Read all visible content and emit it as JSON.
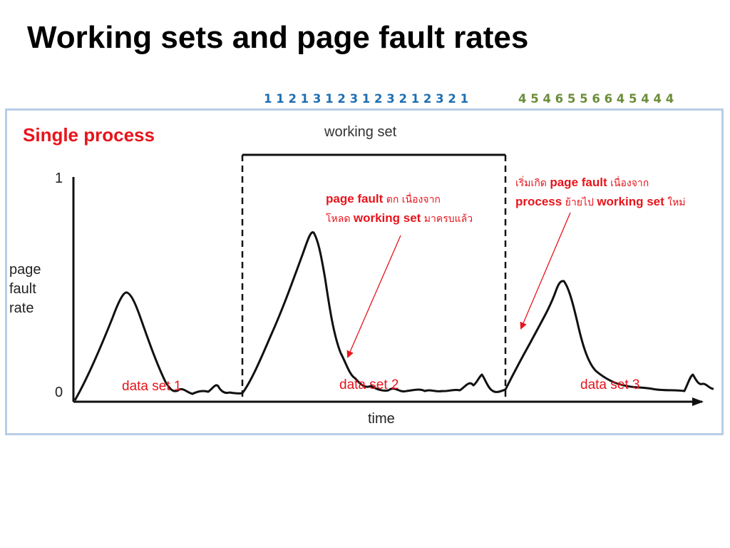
{
  "title": "Working sets and page fault rates",
  "reference_strings": {
    "first": "1 1 2 1 3 1 2 3 1 2 3 2 1 2 3 2 1",
    "second": "4 5 4 6 5 5 6 6 4 5 4 4 4"
  },
  "figure": {
    "process_label": "Single process",
    "working_set_label": "working set",
    "y_axis": {
      "top_tick": "1",
      "bottom_tick": "0",
      "label_line1": "page",
      "label_line2": "fault",
      "label_line3": "rate"
    },
    "x_axis": {
      "label": "time"
    },
    "datasets": [
      "data set 1",
      "data set 2",
      "data set 3"
    ],
    "annotation_1": {
      "line1_bold": "page fault",
      "line1_text": " ตก เนื่องจาก",
      "line2_text": "โหลด ",
      "line2_bold": "working set",
      "line2_text_end": " มาครบแล้ว"
    },
    "annotation_2": {
      "line1_text": "เริ่มเกิด ",
      "line1_bold": "page fault",
      "line1_text_end": " เนื่องจาก",
      "line2_bold": "process",
      "line2_text": " ย้ายไป ",
      "line2_bold2": "working set",
      "line2_text_end": " ใหม่"
    }
  },
  "colors": {
    "title": "#000000",
    "ref_string_1": "#1f6fb2",
    "ref_string_2": "#6c8d3a",
    "annotation": "#e8141b",
    "frame_border": "#b7cee6",
    "curve": "#111111"
  }
}
